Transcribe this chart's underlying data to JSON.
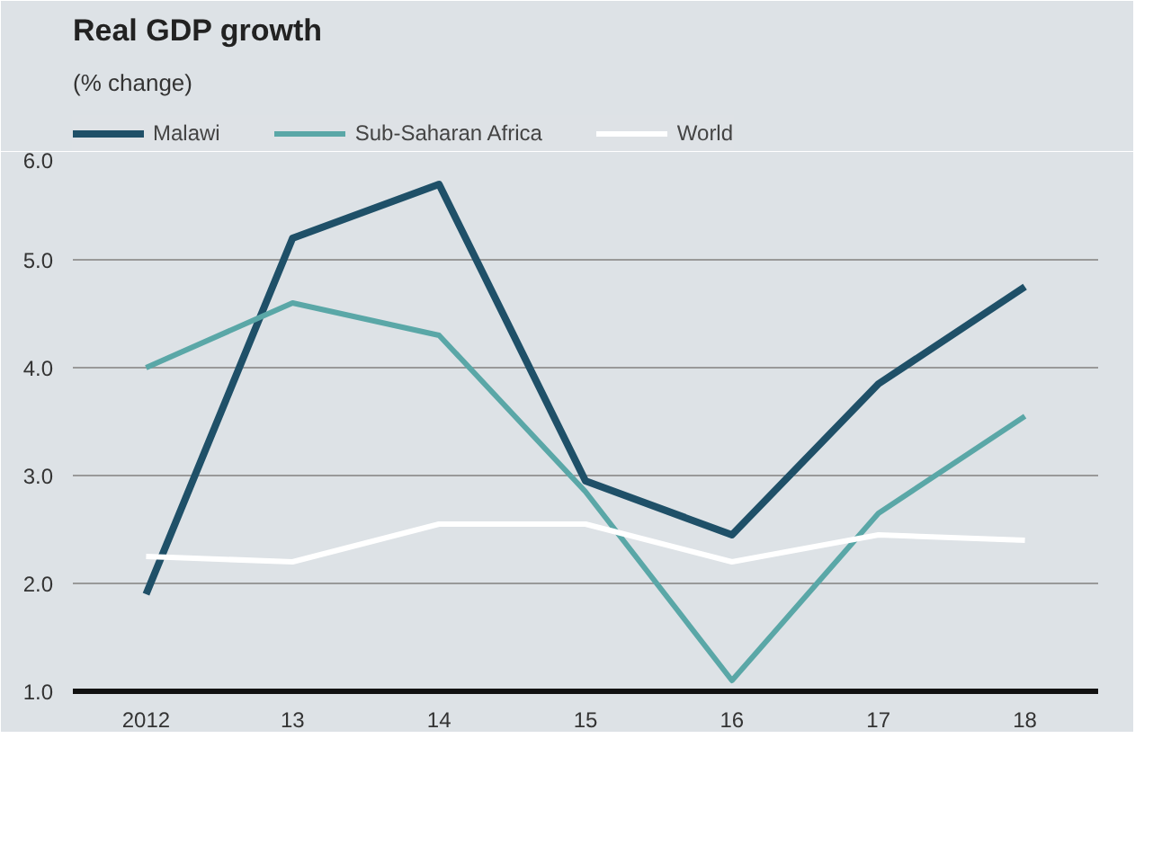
{
  "chart_data": {
    "type": "line",
    "title": "Real GDP growth",
    "subtitle": "(% change)",
    "categories": [
      "2012",
      "13",
      "14",
      "15",
      "16",
      "17",
      "18"
    ],
    "series": [
      {
        "name": "Malawi",
        "color": "#1f5068",
        "values": [
          1.9,
          5.2,
          5.7,
          2.95,
          2.45,
          3.85,
          4.75
        ]
      },
      {
        "name": "Sub-Saharan Africa",
        "color": "#5aa7a7",
        "values": [
          4.0,
          4.6,
          4.3,
          2.85,
          1.1,
          2.65,
          3.55
        ]
      },
      {
        "name": "World",
        "color": "#ffffff",
        "values": [
          2.25,
          2.2,
          2.55,
          2.55,
          2.2,
          2.45,
          2.4
        ]
      }
    ],
    "ylim": [
      1,
      6
    ],
    "yticks": [
      {
        "value": 1,
        "label": "1.0"
      },
      {
        "value": 2,
        "label": "2.0"
      },
      {
        "value": 3,
        "label": "3.0"
      },
      {
        "value": 4,
        "label": "4.0"
      },
      {
        "value": 5,
        "label": "5.0"
      },
      {
        "value": 6,
        "label": "6.0"
      }
    ],
    "grid": "y",
    "legend": "top",
    "line_style": "solid"
  }
}
